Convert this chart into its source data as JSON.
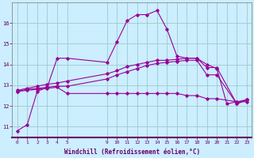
{
  "xlabel": "Windchill (Refroidissement éolien,°C)",
  "bg_color": "#cceeff",
  "grid_color": "#99cccc",
  "line_color": "#990099",
  "xlim": [
    -0.5,
    23.5
  ],
  "ylim": [
    10.5,
    17.0
  ],
  "yticks": [
    11,
    12,
    13,
    14,
    15,
    16
  ],
  "xticks": [
    0,
    1,
    2,
    3,
    4,
    5,
    9,
    10,
    11,
    12,
    13,
    14,
    15,
    16,
    17,
    18,
    19,
    20,
    21,
    22,
    23
  ],
  "series": [
    {
      "x": [
        0,
        1,
        2,
        3,
        4,
        5,
        9,
        10,
        11,
        12,
        13,
        14,
        15,
        16,
        17,
        18,
        19,
        20,
        21,
        22,
        23
      ],
      "y": [
        10.8,
        11.1,
        12.7,
        12.9,
        14.3,
        14.3,
        14.1,
        15.1,
        16.1,
        16.4,
        16.4,
        16.6,
        15.7,
        14.4,
        14.3,
        14.3,
        14.0,
        13.8,
        12.1,
        12.2,
        12.3
      ]
    },
    {
      "x": [
        0,
        1,
        2,
        3,
        4,
        5,
        9,
        10,
        11,
        12,
        13,
        14,
        15,
        16,
        17,
        18,
        19,
        20,
        22,
        23
      ],
      "y": [
        12.75,
        12.85,
        12.95,
        13.05,
        13.1,
        13.2,
        13.55,
        13.7,
        13.9,
        14.0,
        14.1,
        14.2,
        14.2,
        14.25,
        14.3,
        14.3,
        13.85,
        13.85,
        12.1,
        12.3
      ]
    },
    {
      "x": [
        0,
        1,
        2,
        3,
        4,
        5,
        9,
        10,
        11,
        12,
        13,
        14,
        15,
        16,
        17,
        18,
        19,
        20,
        22,
        23
      ],
      "y": [
        12.7,
        12.8,
        12.85,
        12.9,
        12.95,
        12.95,
        13.3,
        13.5,
        13.65,
        13.8,
        13.95,
        14.05,
        14.1,
        14.15,
        14.2,
        14.2,
        13.5,
        13.5,
        12.1,
        12.3
      ]
    },
    {
      "x": [
        0,
        1,
        2,
        3,
        4,
        5,
        9,
        10,
        11,
        12,
        13,
        14,
        15,
        16,
        17,
        18,
        19,
        20,
        22,
        23
      ],
      "y": [
        12.7,
        12.75,
        12.8,
        12.85,
        12.9,
        12.6,
        12.6,
        12.6,
        12.6,
        12.6,
        12.6,
        12.6,
        12.6,
        12.6,
        12.5,
        12.5,
        12.35,
        12.35,
        12.2,
        12.2
      ]
    }
  ]
}
